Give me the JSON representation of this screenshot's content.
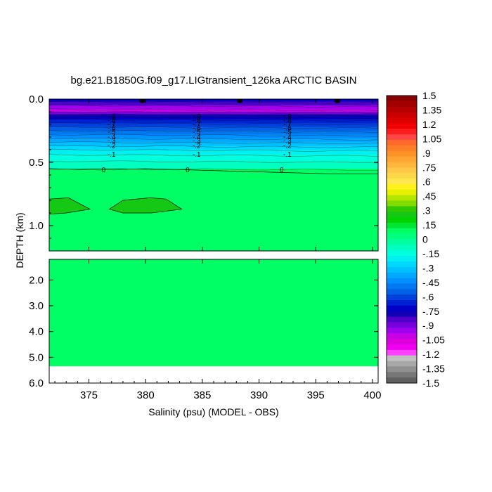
{
  "chart_data": {
    "type": "heatmap",
    "title": "bg.e21.B1850G.f09_g17.LIGtransient_126ka ARCTIC BASIN",
    "xlabel": "Salinity (psu) (MODEL - OBS)",
    "ylabel": "DEPTH (km)",
    "xlim": [
      371.5,
      400.5
    ],
    "x_ticks": [
      {
        "value": 375,
        "label": "375"
      },
      {
        "value": 380,
        "label": "380"
      },
      {
        "value": 385,
        "label": "385"
      },
      {
        "value": 390,
        "label": "390"
      },
      {
        "value": 395,
        "label": "395"
      },
      {
        "value": 400,
        "label": "400"
      }
    ],
    "upper_panel": {
      "ylim": [
        0.0,
        1.2
      ],
      "y_ticks": [
        {
          "value": 0.0,
          "label": "0.0"
        },
        {
          "value": 0.5,
          "label": "0.5"
        },
        {
          "value": 1.0,
          "label": "1.0"
        }
      ]
    },
    "lower_panel": {
      "ylim": [
        1.2,
        6.0
      ],
      "data_bottom_depth": 5.35,
      "y_ticks": [
        {
          "value": 2.0,
          "label": "2.0"
        },
        {
          "value": 3.0,
          "label": "3.0"
        },
        {
          "value": 4.0,
          "label": "4.0"
        },
        {
          "value": 5.0,
          "label": "5.0"
        },
        {
          "value": 6.0,
          "label": "6.0"
        }
      ]
    },
    "colorbar": {
      "levels": [
        -1.5,
        -1.35,
        -1.2,
        -1.05,
        -0.9,
        -0.75,
        -0.6,
        -0.45,
        -0.3,
        -0.15,
        0,
        0.15,
        0.3,
        0.45,
        0.6,
        0.75,
        0.9,
        1.05,
        1.2,
        1.35,
        1.5
      ],
      "tick_labels": [
        "1.5",
        "1.35",
        "1.2",
        "1.05",
        ".9",
        ".75",
        ".6",
        ".45",
        ".3",
        ".15",
        "0",
        "-.15",
        "-.3",
        "-.45",
        "-.6",
        "-.75",
        "-.9",
        "-1.05",
        "-1.2",
        "-1.35",
        "-1.5"
      ],
      "colors_top_to_bottom": [
        "#8b0000",
        "#a00000",
        "#b40000",
        "#c80000",
        "#dc0000",
        "#f00000",
        "#ff1e1e",
        "#ff4646",
        "#ff6a2a",
        "#ff7e28",
        "#ff9226",
        "#ffa432",
        "#ffb43c",
        "#ffc846",
        "#ffd84a",
        "#ffe850",
        "#fff01e",
        "#e6f000",
        "#b4e600",
        "#82dc00",
        "#32c800",
        "#14c814",
        "#00d200",
        "#00e632",
        "#00ff64",
        "#00ff80",
        "#00ffa0",
        "#00ffc0",
        "#00ffdc",
        "#00f0f0",
        "#00d8ff",
        "#00c0ff",
        "#00a8ff",
        "#0090ff",
        "#0078f0",
        "#0060e6",
        "#0040dc",
        "#0020d2",
        "#0000c8",
        "#1400b4",
        "#5000c8",
        "#7800dc",
        "#a000f0",
        "#c800e6",
        "#dc00dc",
        "#f000f0",
        "#ff40ff",
        "#c0c0c0",
        "#a8a8a8",
        "#909090",
        "#787878",
        "#606060"
      ]
    },
    "surface_layers": [
      {
        "depth_top": 0.0,
        "depth_bottom": 0.02,
        "color": "#0000c8"
      },
      {
        "depth_top": 0.02,
        "depth_bottom": 0.05,
        "color": "#5000c8"
      },
      {
        "depth_top": 0.05,
        "depth_bottom": 0.08,
        "color": "#a000f0"
      },
      {
        "depth_top": 0.08,
        "depth_bottom": 0.1,
        "color": "#c800e6"
      },
      {
        "depth_top": 0.1,
        "depth_bottom": 0.12,
        "color": "#7800dc"
      },
      {
        "depth_top": 0.12,
        "depth_bottom": 0.14,
        "color": "#1400b4"
      },
      {
        "depth_top": 0.14,
        "depth_bottom": 0.16,
        "color": "#0000c8"
      },
      {
        "depth_top": 0.16,
        "depth_bottom": 0.19,
        "color": "#0020d2"
      },
      {
        "depth_top": 0.19,
        "depth_bottom": 0.22,
        "color": "#0040dc"
      },
      {
        "depth_top": 0.22,
        "depth_bottom": 0.25,
        "color": "#0060e6"
      },
      {
        "depth_top": 0.25,
        "depth_bottom": 0.28,
        "color": "#0078f0"
      },
      {
        "depth_top": 0.28,
        "depth_bottom": 0.31,
        "color": "#0090ff"
      },
      {
        "depth_top": 0.31,
        "depth_bottom": 0.34,
        "color": "#00a8ff"
      },
      {
        "depth_top": 0.34,
        "depth_bottom": 0.37,
        "color": "#00c0ff"
      },
      {
        "depth_top": 0.37,
        "depth_bottom": 0.4,
        "color": "#00d8ff"
      },
      {
        "depth_top": 0.4,
        "depth_bottom": 0.44,
        "color": "#00f0f0"
      },
      {
        "depth_top": 0.44,
        "depth_bottom": 0.49,
        "color": "#00ffdc"
      },
      {
        "depth_top": 0.49,
        "depth_bottom": 0.55,
        "color": "#00ffc0"
      },
      {
        "depth_top": 0.55,
        "depth_bottom": 1.2,
        "color": "#00ff64"
      }
    ],
    "contour_labels": [
      {
        "text": "-.9",
        "x": [
          377.0,
          384.5,
          392.5
        ],
        "depth": 0.14
      },
      {
        "text": "-.8",
        "x": [
          377.0,
          384.5,
          392.5
        ],
        "depth": 0.17
      },
      {
        "text": "-.7",
        "x": [
          377.0,
          384.5,
          392.5
        ],
        "depth": 0.2
      },
      {
        "text": "-.6",
        "x": [
          377.0,
          384.5,
          392.5
        ],
        "depth": 0.23
      },
      {
        "text": "-.5",
        "x": [
          377.0,
          384.5,
          392.5
        ],
        "depth": 0.26
      },
      {
        "text": "-.4",
        "x": [
          377.0,
          384.5,
          392.5
        ],
        "depth": 0.3
      },
      {
        "text": "-.3",
        "x": [
          377.0,
          384.5,
          392.5
        ],
        "depth": 0.33
      },
      {
        "text": "-.2",
        "x": [
          377.0,
          384.5,
          392.5
        ],
        "depth": 0.37
      },
      {
        "text": "-.1",
        "x": [
          377.0,
          384.5,
          392.5
        ],
        "depth": 0.44
      },
      {
        "text": "0",
        "x": [
          376.3,
          383.7,
          392.0
        ],
        "depth": 0.56
      }
    ],
    "zero_contour": [
      [
        371.5,
        0.55
      ],
      [
        376.0,
        0.56
      ],
      [
        380.0,
        0.55
      ],
      [
        384.0,
        0.56
      ],
      [
        388.0,
        0.57
      ],
      [
        392.0,
        0.58
      ],
      [
        396.0,
        0.59
      ],
      [
        400.5,
        0.59
      ]
    ],
    "closed_contours": [
      {
        "points": [
          [
            371.5,
            0.79
          ],
          [
            373.2,
            0.78
          ],
          [
            375.1,
            0.87
          ],
          [
            373.0,
            0.9
          ],
          [
            371.5,
            0.91
          ]
        ]
      },
      {
        "points": [
          [
            376.8,
            0.87
          ],
          [
            378.0,
            0.8
          ],
          [
            380.4,
            0.78
          ],
          [
            381.8,
            0.79
          ],
          [
            383.2,
            0.87
          ],
          [
            380.5,
            0.9
          ],
          [
            378.0,
            0.9
          ]
        ]
      }
    ]
  }
}
